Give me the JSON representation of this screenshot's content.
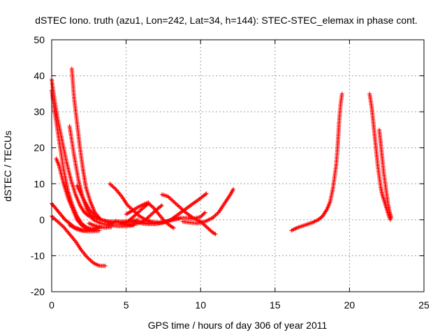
{
  "chart_data": {
    "type": "scatter",
    "title": "dSTEC Iono. truth (azu1, Lon=242, Lat=34, h=144): STEC-STEC_elemax in phase cont.",
    "xlabel": "GPS time / hours of day 306 of year 2011",
    "ylabel": "dSTEC  / TECUs",
    "xlim": [
      0,
      25
    ],
    "ylim": [
      -20,
      50
    ],
    "x_ticks": [
      "0",
      "5",
      "10",
      "15",
      "20",
      "25"
    ],
    "y_ticks": [
      "-20",
      "-10",
      "0",
      "10",
      "20",
      "30",
      "40",
      "50"
    ],
    "grid": true,
    "marker": "+",
    "color": "#ff0000",
    "series": [
      {
        "points": [
          [
            0.0,
            39
          ],
          [
            0.2,
            33
          ],
          [
            0.4,
            28
          ],
          [
            0.7,
            22
          ],
          [
            1.0,
            16
          ],
          [
            1.3,
            11
          ],
          [
            1.6,
            7
          ],
          [
            1.9,
            4
          ],
          [
            2.2,
            2
          ],
          [
            2.5,
            1
          ],
          [
            2.8,
            0.5
          ],
          [
            3.1,
            0.5
          ]
        ]
      },
      {
        "points": [
          [
            0.0,
            36
          ],
          [
            0.2,
            30
          ],
          [
            0.5,
            22
          ],
          [
            0.8,
            14
          ],
          [
            1.1,
            8
          ],
          [
            1.4,
            4
          ],
          [
            1.7,
            1
          ],
          [
            2.0,
            -1
          ],
          [
            2.3,
            -2
          ],
          [
            2.6,
            -2.5
          ],
          [
            2.9,
            -2.5
          ],
          [
            3.3,
            -2
          ]
        ]
      },
      {
        "points": [
          [
            0.3,
            17
          ],
          [
            0.5,
            15
          ],
          [
            0.8,
            10
          ],
          [
            1.1,
            6
          ],
          [
            1.4,
            3
          ],
          [
            1.7,
            0
          ],
          [
            2.0,
            -1.5
          ],
          [
            2.3,
            -2.5
          ],
          [
            2.6,
            -2.7
          ],
          [
            3.0,
            -2.5
          ]
        ]
      },
      {
        "points": [
          [
            0.0,
            4.5
          ],
          [
            0.3,
            3
          ],
          [
            0.6,
            1.5
          ],
          [
            0.9,
            0
          ],
          [
            1.2,
            -1
          ],
          [
            1.5,
            -2
          ],
          [
            1.8,
            -2.5
          ],
          [
            2.1,
            -3
          ],
          [
            2.4,
            -3
          ]
        ]
      },
      {
        "points": [
          [
            0.0,
            1
          ],
          [
            0.4,
            -0.5
          ],
          [
            0.8,
            -2
          ],
          [
            1.2,
            -4
          ],
          [
            1.6,
            -6
          ],
          [
            2.0,
            -8.5
          ],
          [
            2.4,
            -10.5
          ],
          [
            2.8,
            -12
          ],
          [
            3.2,
            -12.8
          ],
          [
            3.6,
            -12.8
          ]
        ]
      },
      {
        "points": [
          [
            1.35,
            42
          ],
          [
            1.5,
            34
          ],
          [
            1.7,
            27
          ],
          [
            1.9,
            20
          ],
          [
            2.1,
            14
          ],
          [
            2.3,
            9
          ],
          [
            2.6,
            5
          ],
          [
            2.9,
            2
          ],
          [
            3.3,
            0
          ],
          [
            3.8,
            -0.5
          ],
          [
            4.3,
            -0.5
          ],
          [
            4.9,
            -0.5
          ],
          [
            5.5,
            -0.5
          ]
        ]
      },
      {
        "points": [
          [
            1.2,
            26
          ],
          [
            1.5,
            18
          ],
          [
            1.8,
            11
          ],
          [
            2.1,
            6
          ],
          [
            2.4,
            2.5
          ],
          [
            2.8,
            0
          ],
          [
            3.3,
            -1
          ],
          [
            3.9,
            -1.5
          ],
          [
            4.5,
            -1.8
          ],
          [
            5.0,
            -1.8
          ],
          [
            5.5,
            -1.5
          ]
        ]
      },
      {
        "points": [
          [
            1.2,
            -1.5
          ],
          [
            1.6,
            -2.5
          ],
          [
            2.0,
            -3
          ],
          [
            2.4,
            -3.2
          ],
          [
            2.8,
            -3.2
          ],
          [
            3.2,
            -3
          ]
        ]
      },
      {
        "points": [
          [
            1.7,
            9.5
          ],
          [
            2.1,
            6
          ],
          [
            2.5,
            3
          ],
          [
            2.9,
            1
          ],
          [
            3.3,
            0
          ],
          [
            3.7,
            -0.5
          ],
          [
            4.1,
            -1
          ]
        ]
      },
      {
        "points": [
          [
            2.5,
            -1
          ],
          [
            2.8,
            -1.5
          ],
          [
            3.2,
            -2
          ],
          [
            3.6,
            -2.2
          ],
          [
            4.0,
            -2
          ]
        ]
      },
      {
        "points": [
          [
            3.3,
            0
          ],
          [
            3.8,
            -0.5
          ],
          [
            4.3,
            -0.8
          ],
          [
            4.8,
            -0.8
          ],
          [
            5.3,
            -0.5
          ],
          [
            5.8,
            0
          ]
        ]
      },
      {
        "points": [
          [
            3.9,
            10
          ],
          [
            4.3,
            8.5
          ],
          [
            4.7,
            6.5
          ],
          [
            5.1,
            4
          ],
          [
            5.5,
            2.5
          ],
          [
            5.9,
            1
          ],
          [
            6.3,
            0
          ],
          [
            6.7,
            -0.5
          ],
          [
            7.2,
            -0.8
          ],
          [
            7.7,
            -0.5
          ],
          [
            8.2,
            0
          ],
          [
            8.6,
            0.3
          ]
        ]
      },
      {
        "points": [
          [
            4.3,
            -0.3
          ],
          [
            4.8,
            -1
          ],
          [
            5.3,
            -1.5
          ],
          [
            5.8,
            -1
          ],
          [
            6.3,
            0
          ],
          [
            6.7,
            1.5
          ],
          [
            7.1,
            3
          ],
          [
            7.4,
            4
          ]
        ]
      },
      {
        "points": [
          [
            4.6,
            -1.2
          ],
          [
            5.0,
            -0.8
          ],
          [
            5.4,
            0.5
          ],
          [
            5.8,
            2
          ],
          [
            6.2,
            3.5
          ],
          [
            6.5,
            4.5
          ],
          [
            6.8,
            3.5
          ],
          [
            7.2,
            1.5
          ],
          [
            7.6,
            -0.5
          ],
          [
            8.0,
            -1.8
          ],
          [
            8.2,
            -2.3
          ]
        ]
      },
      {
        "points": [
          [
            5.0,
            1.5
          ],
          [
            5.4,
            2.5
          ],
          [
            5.8,
            3.5
          ],
          [
            6.2,
            4.3
          ],
          [
            6.5,
            4.8
          ]
        ]
      },
      {
        "points": [
          [
            5.5,
            -0.5
          ],
          [
            6.0,
            -0.8
          ],
          [
            6.5,
            -1
          ],
          [
            7.0,
            -1
          ],
          [
            7.5,
            -0.8
          ],
          [
            8.0,
            0
          ],
          [
            8.5,
            1.5
          ],
          [
            9.0,
            3
          ],
          [
            9.5,
            4.5
          ],
          [
            10.0,
            6
          ],
          [
            10.4,
            7.3
          ]
        ]
      },
      {
        "points": [
          [
            6.0,
            -1
          ],
          [
            6.5,
            -1.2
          ],
          [
            7.0,
            -1.2
          ],
          [
            7.5,
            -0.8
          ],
          [
            8.0,
            0
          ],
          [
            8.5,
            0.5
          ],
          [
            9.0,
            0.5
          ],
          [
            9.5,
            0.3
          ],
          [
            10.0,
            0.8
          ],
          [
            10.3,
            2
          ]
        ]
      },
      {
        "points": [
          [
            7.4,
            7
          ],
          [
            7.8,
            6.5
          ],
          [
            8.2,
            5
          ],
          [
            8.6,
            3.5
          ],
          [
            9.0,
            2
          ],
          [
            9.5,
            0.5
          ],
          [
            10.0,
            -0.5
          ],
          [
            10.4,
            -2
          ],
          [
            10.8,
            -3.5
          ],
          [
            11.0,
            -4
          ]
        ]
      },
      {
        "points": [
          [
            8.8,
            -0.5
          ],
          [
            9.3,
            -0.8
          ],
          [
            9.8,
            -1
          ],
          [
            10.3,
            -0.5
          ],
          [
            10.8,
            0.5
          ],
          [
            11.2,
            2
          ],
          [
            11.6,
            4.5
          ],
          [
            12.0,
            7
          ],
          [
            12.2,
            8.5
          ]
        ]
      },
      {
        "points": [
          [
            16.1,
            -3
          ],
          [
            16.5,
            -2.2
          ],
          [
            17.0,
            -1.5
          ],
          [
            17.5,
            -0.8
          ],
          [
            17.9,
            0
          ],
          [
            18.2,
            1
          ],
          [
            18.5,
            3
          ],
          [
            18.7,
            5
          ],
          [
            18.9,
            9
          ],
          [
            19.1,
            15
          ],
          [
            19.2,
            20
          ],
          [
            19.3,
            27
          ],
          [
            19.4,
            32
          ],
          [
            19.5,
            35
          ]
        ]
      },
      {
        "points": [
          [
            21.35,
            35
          ],
          [
            21.5,
            31
          ],
          [
            21.6,
            27
          ],
          [
            21.7,
            23
          ],
          [
            21.8,
            19
          ],
          [
            21.9,
            15
          ],
          [
            22.0,
            12
          ],
          [
            22.1,
            9
          ],
          [
            22.2,
            7
          ],
          [
            22.35,
            5
          ],
          [
            22.5,
            3
          ],
          [
            22.65,
            1
          ],
          [
            22.75,
            0
          ]
        ]
      },
      {
        "points": [
          [
            22.0,
            25
          ],
          [
            22.1,
            21
          ],
          [
            22.2,
            17
          ],
          [
            22.3,
            13
          ],
          [
            22.4,
            10
          ],
          [
            22.5,
            7
          ],
          [
            22.6,
            4
          ],
          [
            22.7,
            2
          ],
          [
            22.8,
            0.5
          ]
        ]
      }
    ]
  }
}
